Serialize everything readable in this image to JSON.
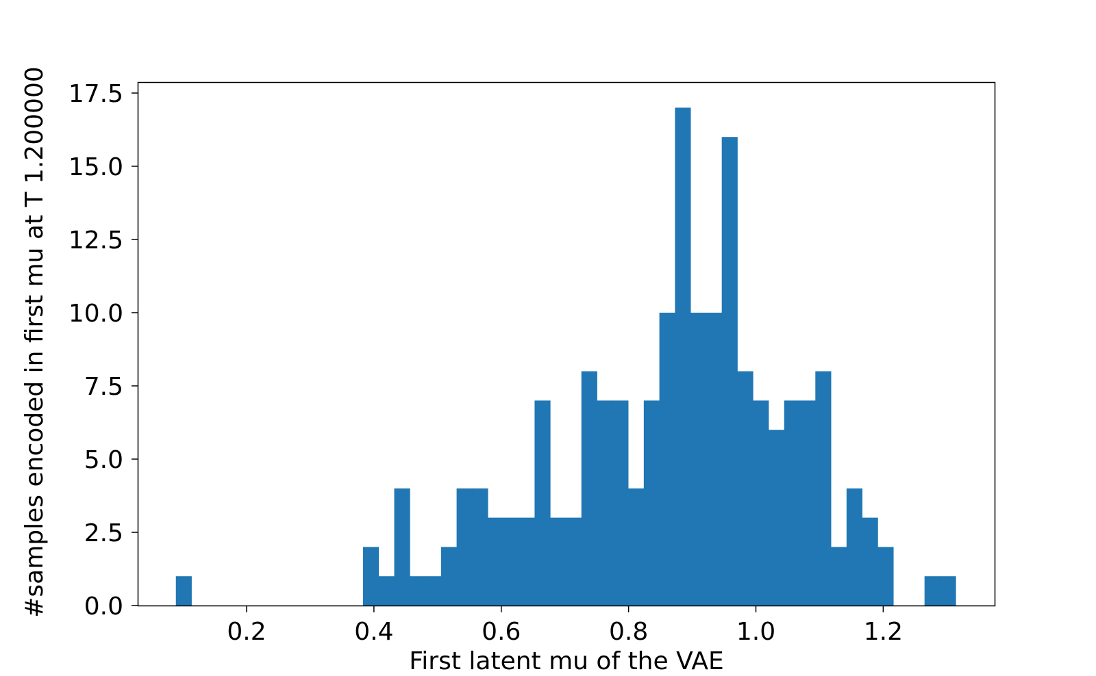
{
  "chart_data": {
    "type": "bar",
    "title": "",
    "xlabel": "First latent mu of the VAE",
    "ylabel": "#samples encoded in first mu at T 1.200000",
    "bar_color": "#2077b4",
    "xlim": [
      0.03,
      1.375
    ],
    "ylim": [
      0,
      17.85
    ],
    "bin_start": 0.0889,
    "bin_width": 0.0245,
    "counts": [
      1,
      0,
      0,
      0,
      0,
      0,
      0,
      0,
      0,
      0,
      0,
      0,
      2,
      1,
      4,
      1,
      1,
      2,
      4,
      4,
      3,
      3,
      3,
      7,
      3,
      3,
      8,
      7,
      7,
      4,
      7,
      10,
      17,
      10,
      10,
      16,
      8,
      7,
      6,
      7,
      7,
      8,
      2,
      4,
      3,
      2,
      0,
      0,
      1,
      1
    ],
    "xticks": [
      0.2,
      0.4,
      0.6,
      0.8,
      1.0,
      1.2
    ],
    "xtick_labels": [
      "0.2",
      "0.4",
      "0.6",
      "0.8",
      "1.0",
      "1.2"
    ],
    "yticks": [
      0,
      2.5,
      5,
      7.5,
      10,
      12.5,
      15,
      17.5
    ],
    "ytick_labels": [
      "0.0",
      "2.5",
      "5.0",
      "7.5",
      "10.0",
      "12.5",
      "15.0",
      "17.5"
    ]
  }
}
